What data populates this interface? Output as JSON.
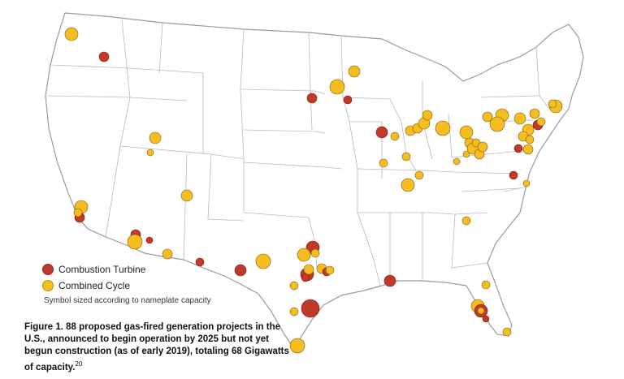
{
  "legend": {
    "combustion_label": "Combustion Turbine",
    "combined_label": "Combined Cycle",
    "note": "Symbol sized according to nameplate capacity"
  },
  "caption": {
    "text": "Figure 1. 88 proposed gas-fired generation projects in the U.S., announced to begin operation by 2025 but not yet begun construction (as of early 2019), totaling 68 Gigawatts of capacity.",
    "footnote": "20"
  },
  "colors": {
    "combustion_turbine": "#c0392b",
    "combined_cycle": "#f5bd1f",
    "marker_stroke": "#7a5a10",
    "state_fill": "#ffffff",
    "state_border": "#9a9a9a"
  }
}
